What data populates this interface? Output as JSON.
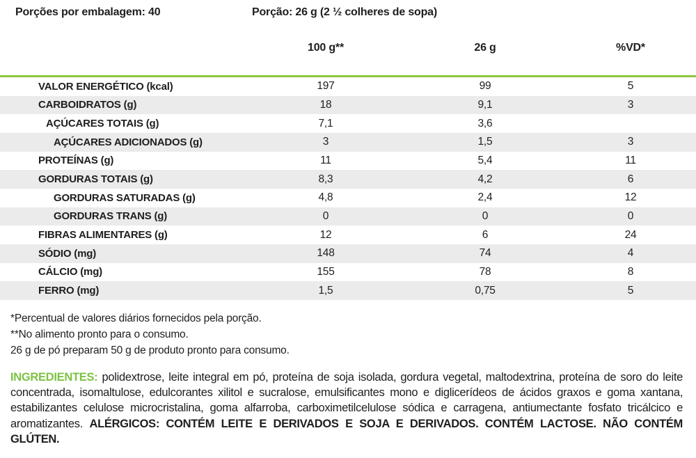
{
  "header": {
    "servings_per_package": "Porções por embalagem: 40",
    "serving_size": "Porção: 26 g (2 ½ colheres de sopa)"
  },
  "columns": {
    "per100_label": "100 g**",
    "per26_label": "26 g",
    "vd_label": "%VD*"
  },
  "table": {
    "rows": [
      {
        "label": "VALOR ENERGÉTICO (kcal)",
        "indent": 0,
        "per100": "197",
        "per26": "99",
        "vd": "5"
      },
      {
        "label": "CARBOIDRATOS (g)",
        "indent": 0,
        "per100": "18",
        "per26": "9,1",
        "vd": "3"
      },
      {
        "label": "AÇÚCARES TOTAIS (g)",
        "indent": 1,
        "per100": "7,1",
        "per26": "3,6",
        "vd": ""
      },
      {
        "label": "AÇÚCARES ADICIONADOS (g)",
        "indent": 2,
        "per100": "3",
        "per26": "1,5",
        "vd": "3"
      },
      {
        "label": "PROTEÍNAS (g)",
        "indent": 0,
        "per100": "11",
        "per26": "5,4",
        "vd": "11"
      },
      {
        "label": "GORDURAS TOTAIS (g)",
        "indent": 0,
        "per100": "8,3",
        "per26": "4,2",
        "vd": "6"
      },
      {
        "label": "GORDURAS SATURADAS (g)",
        "indent": 2,
        "per100": "4,8",
        "per26": "2,4",
        "vd": "12"
      },
      {
        "label": "GORDURAS TRANS (g)",
        "indent": 2,
        "per100": "0",
        "per26": "0",
        "vd": "0"
      },
      {
        "label": "FIBRAS ALIMENTARES (g)",
        "indent": 0,
        "per100": "12",
        "per26": "6",
        "vd": "24"
      },
      {
        "label": "SÓDIO (mg)",
        "indent": 0,
        "per100": "148",
        "per26": "74",
        "vd": "4"
      },
      {
        "label": "CÁLCIO (mg)",
        "indent": 0,
        "per100": "155",
        "per26": "78",
        "vd": "8"
      },
      {
        "label": "FERRO (mg)",
        "indent": 0,
        "per100": "1,5",
        "per26": "0,75",
        "vd": "5"
      }
    ]
  },
  "footnotes": [
    "*Percentual de valores diários fornecidos pela porção.",
    "**No alimento pronto para o consumo.",
    "26 g de pó preparam 50 g de produto pronto para consumo."
  ],
  "ingredients": {
    "label": "INGREDIENTES:",
    "text": " polidextrose, leite integral em pó, proteína de soja isolada, gordura vegetal, maltodextrina, proteína de soro do leite concentrada, isomaltulose, edulcorantes xilitol e sucralose, emulsificantes mono e diglicerídeos de ácidos graxos e goma xantana, estabilizantes celulose microcristalina, goma alfarroba, carboximetilcelulose sódica e carragena, antiumectante fosfato tricálcico e aromatizantes. ",
    "allergens": "ALÉRGICOS: CONTÉM LEITE E DERIVADOS E SOJA E DERIVADOS. CONTÉM LACTOSE. NÃO CONTÉM GLÚTEN."
  },
  "colors": {
    "accent_green_rule": "#8CC63E",
    "ingredients_green": "#7DC242",
    "row_stripe_gray": "#EBEBEB"
  }
}
